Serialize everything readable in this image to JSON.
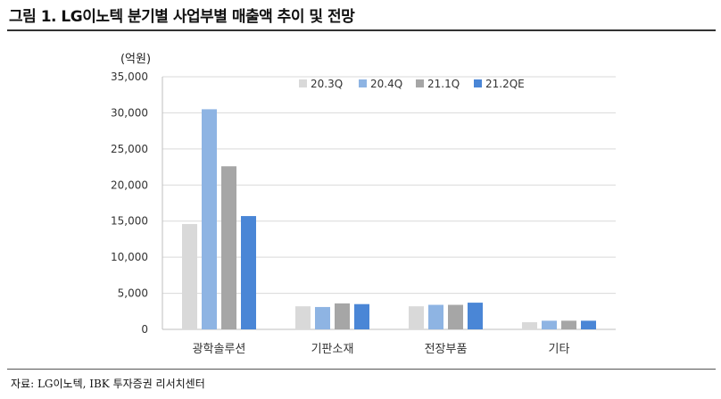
{
  "figure": {
    "title": "그림 1. LG이노텍 분기별 사업부별 매출액 추이 및 전망",
    "source": "자료: LG이노텍, IBK 투자증권 리서치센터"
  },
  "chart_data": {
    "type": "bar",
    "unit_label": "(억원)",
    "categories": [
      "광학솔루션",
      "기판소재",
      "전장부품",
      "기타"
    ],
    "series": [
      {
        "name": "20.3Q",
        "color": "#d9d9d9",
        "values": [
          14600,
          3200,
          3200,
          1000
        ]
      },
      {
        "name": "20.4Q",
        "color": "#8eb4e3",
        "values": [
          30500,
          3100,
          3400,
          1200
        ]
      },
      {
        "name": "21.1Q",
        "color": "#a6a6a6",
        "values": [
          22600,
          3600,
          3400,
          1200
        ]
      },
      {
        "name": "21.2QE",
        "color": "#4a86d6",
        "values": [
          15700,
          3500,
          3700,
          1200
        ]
      }
    ],
    "ylim": [
      0,
      35000
    ],
    "yticks": [
      "0",
      "5,000",
      "10,000",
      "15,000",
      "20,000",
      "25,000",
      "30,000",
      "35,000"
    ],
    "grid": true,
    "legend_position": "top-right"
  }
}
